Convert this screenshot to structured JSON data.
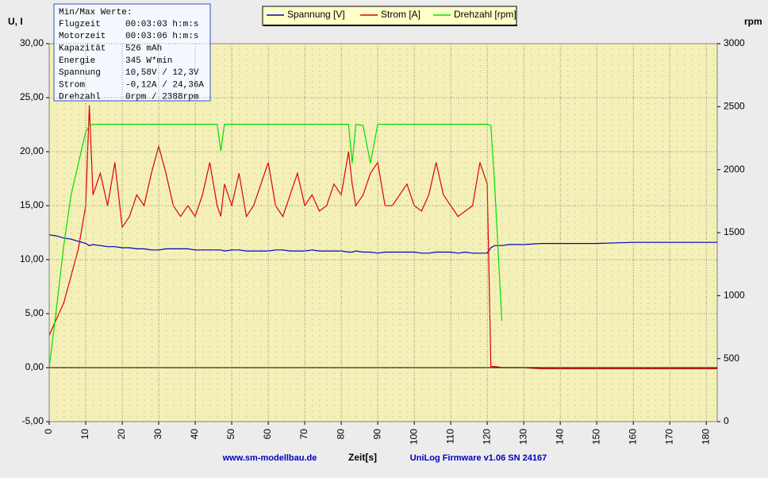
{
  "chart_data": {
    "type": "line",
    "y_label": "U, I",
    "y2_label": "rpm",
    "x_label": "Zeit[s]",
    "footer_left": "www.sm-modellbau.de",
    "footer_right": "UniLog Firmware v1.06 SN 24167",
    "info_box": {
      "title": "Min/Max Werte:",
      "rows": [
        [
          "Flugzeit",
          "00:03:03 h:m:s"
        ],
        [
          "Motorzeit",
          "00:03:06 h:m:s"
        ],
        [
          "Kapazität",
          "526 mAh"
        ],
        [
          "Energie",
          "345 W*min"
        ],
        [
          "Spannung",
          "10,58V / 12,3V"
        ],
        [
          "Strom",
          "-0,12A / 24,36A"
        ],
        [
          "Drehzahl",
          "0rpm / 2388rpm"
        ]
      ]
    },
    "grid": true,
    "xlim": [
      0,
      183
    ],
    "xticks": [
      0,
      10,
      20,
      30,
      40,
      50,
      60,
      70,
      80,
      90,
      100,
      110,
      120,
      130,
      140,
      150,
      160,
      170,
      180
    ],
    "ylim": [
      -5,
      30
    ],
    "yticks": [
      {
        "value": -5,
        "label": "-5,00"
      },
      {
        "value": 0,
        "label": "0,00"
      },
      {
        "value": 5,
        "label": "5,00"
      },
      {
        "value": 10,
        "label": "10,00"
      },
      {
        "value": 15,
        "label": "15,00"
      },
      {
        "value": 20,
        "label": "20,00"
      },
      {
        "value": 25,
        "label": "25,00"
      },
      {
        "value": 30,
        "label": "30,00"
      }
    ],
    "y2lim": [
      0,
      3000
    ],
    "y2ticks": [
      0,
      500,
      1000,
      1500,
      2000,
      2500,
      3000
    ],
    "x": [
      0,
      2,
      4,
      6,
      8,
      10,
      11,
      12,
      14,
      16,
      18,
      20,
      22,
      24,
      26,
      28,
      30,
      32,
      34,
      36,
      38,
      40,
      42,
      44,
      46,
      47,
      48,
      50,
      52,
      54,
      56,
      58,
      60,
      62,
      64,
      66,
      68,
      70,
      72,
      74,
      76,
      78,
      80,
      82,
      83,
      84,
      86,
      88,
      90,
      92,
      94,
      96,
      98,
      100,
      102,
      104,
      106,
      108,
      110,
      112,
      114,
      116,
      118,
      120,
      121,
      122,
      124,
      126,
      128,
      130,
      135,
      140,
      150,
      160,
      170,
      180,
      183
    ],
    "series": [
      {
        "name": "Spannung [V]",
        "color": "#0000c0",
        "values": [
          12.3,
          12.2,
          12.0,
          11.9,
          11.7,
          11.5,
          11.3,
          11.4,
          11.3,
          11.2,
          11.2,
          11.1,
          11.1,
          11.0,
          11.0,
          10.9,
          10.9,
          11.0,
          11.0,
          11.0,
          11.0,
          10.9,
          10.9,
          10.9,
          10.9,
          10.9,
          10.8,
          10.9,
          10.9,
          10.8,
          10.8,
          10.8,
          10.8,
          10.9,
          10.9,
          10.8,
          10.8,
          10.8,
          10.9,
          10.8,
          10.8,
          10.8,
          10.8,
          10.7,
          10.7,
          10.8,
          10.7,
          10.7,
          10.6,
          10.7,
          10.7,
          10.7,
          10.7,
          10.7,
          10.6,
          10.6,
          10.7,
          10.7,
          10.7,
          10.6,
          10.7,
          10.6,
          10.6,
          10.6,
          11.1,
          11.3,
          11.3,
          11.4,
          11.4,
          11.4,
          11.5,
          11.5,
          11.5,
          11.6,
          11.6,
          11.6,
          11.6
        ]
      },
      {
        "name": "Strom [A]",
        "color": "#e00000",
        "values": [
          3,
          4.5,
          6,
          8.5,
          11,
          15,
          24.3,
          16,
          18,
          15,
          19,
          13,
          14,
          16,
          15,
          18,
          20.5,
          18,
          15,
          14,
          15,
          14,
          16,
          19,
          15,
          14,
          17,
          15,
          18,
          14,
          15,
          17,
          19,
          15,
          14,
          16,
          18,
          15,
          16,
          14.5,
          15,
          17,
          16,
          20,
          17,
          15,
          16,
          18,
          19,
          15,
          15,
          16,
          17,
          15,
          14.5,
          16,
          19,
          16,
          15,
          14,
          14.5,
          15,
          19,
          17,
          0.1,
          0.1,
          0,
          0,
          0,
          0,
          -0.1,
          -0.1,
          -0.1,
          -0.1,
          -0.1,
          -0.1,
          -0.1
        ]
      },
      {
        "name": "Drehzahl [rpm]",
        "color": "#00e000",
        "axis": "y2",
        "values": [
          430,
          900,
          1400,
          1800,
          2050,
          2300,
          2350,
          2360,
          2360,
          2360,
          2360,
          2360,
          2360,
          2360,
          2360,
          2360,
          2360,
          2360,
          2360,
          2360,
          2360,
          2360,
          2360,
          2360,
          2360,
          2150,
          2360,
          2360,
          2360,
          2360,
          2360,
          2360,
          2360,
          2360,
          2360,
          2360,
          2360,
          2360,
          2360,
          2360,
          2360,
          2360,
          2360,
          2360,
          2050,
          2360,
          2350,
          2050,
          2360,
          2360,
          2360,
          2360,
          2360,
          2360,
          2360,
          2360,
          2360,
          2360,
          2360,
          2360,
          2360,
          2360,
          2360,
          2360,
          2350,
          1900,
          800,
          null,
          null,
          null,
          null,
          null,
          null,
          null,
          null,
          null,
          null
        ]
      }
    ]
  }
}
